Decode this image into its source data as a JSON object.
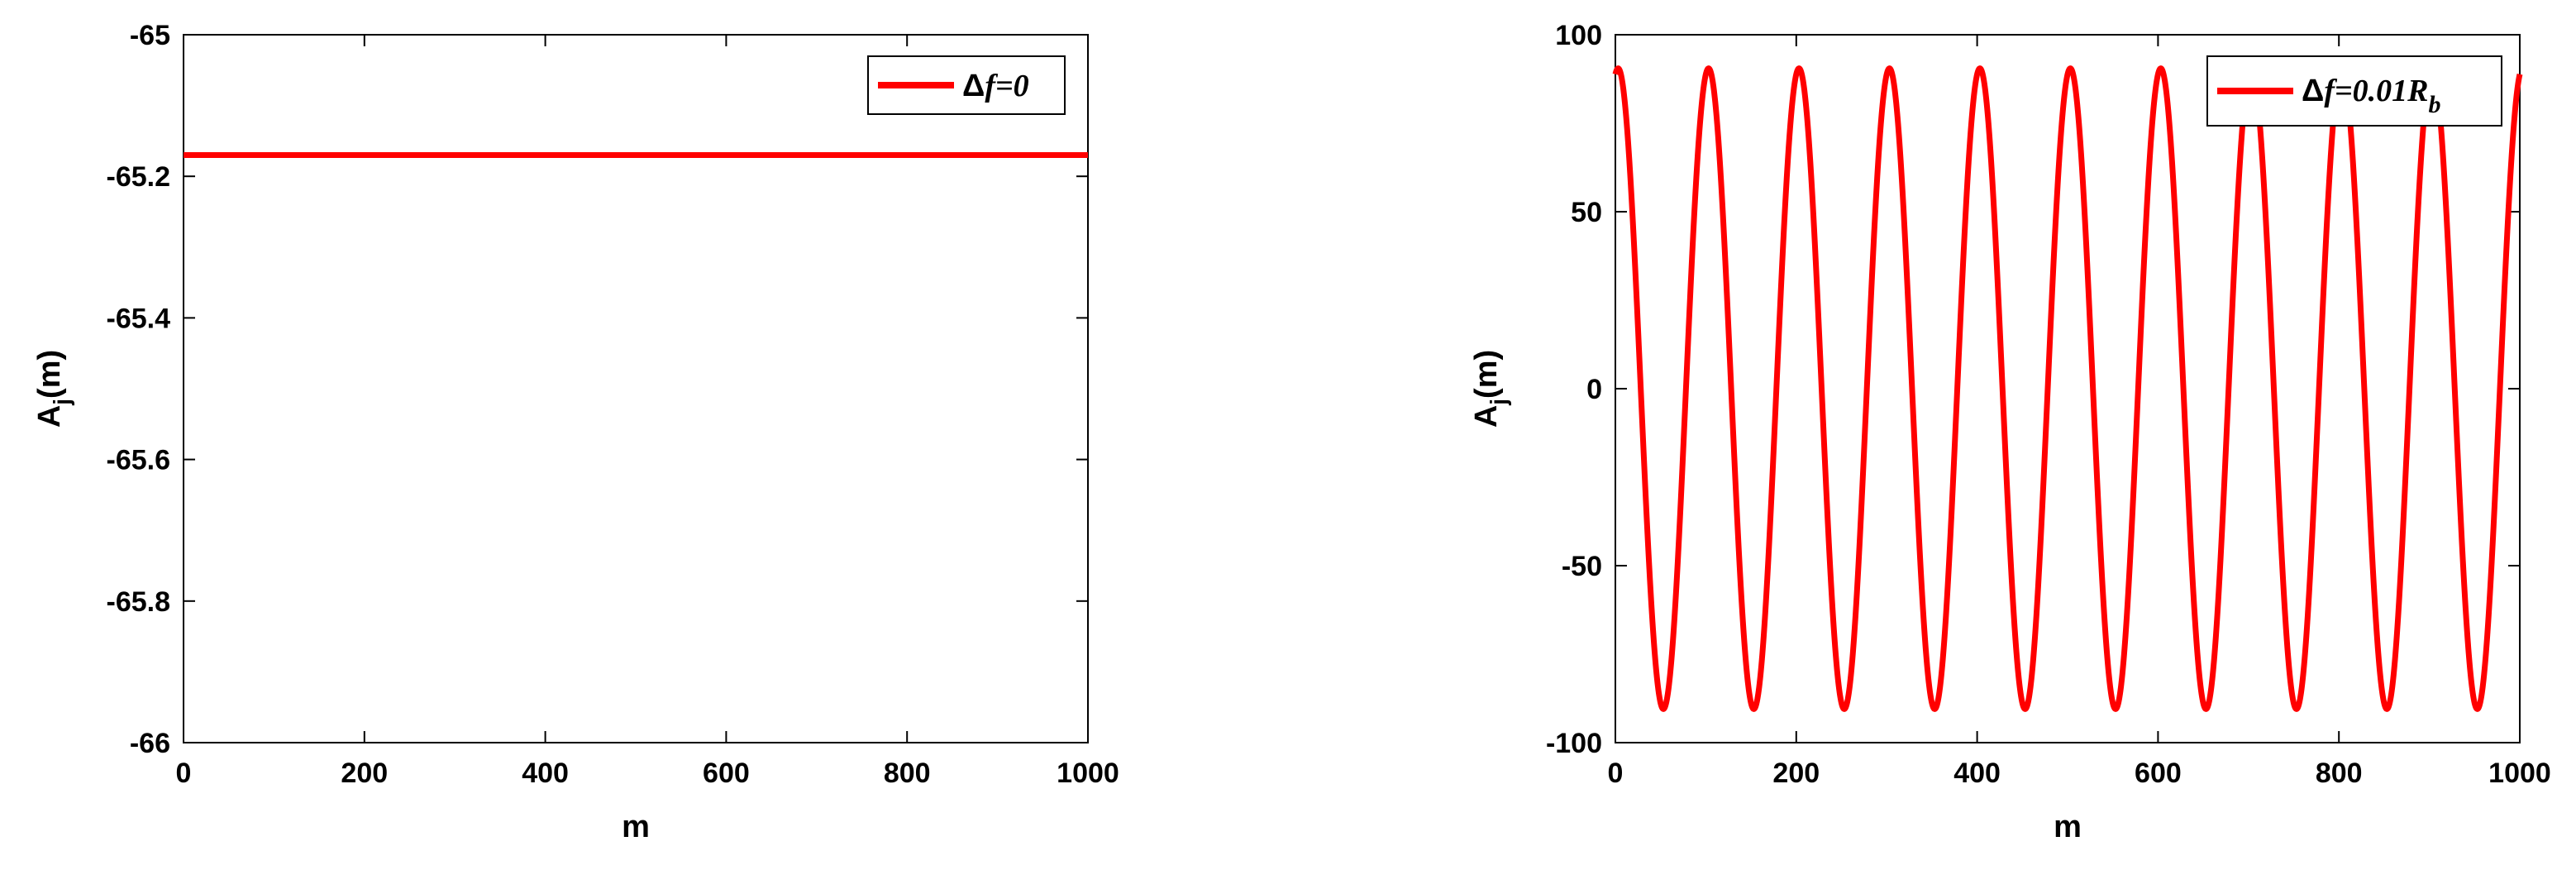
{
  "colors": {
    "series": "#ff0000",
    "axis": "#000000",
    "background": "#ffffff"
  },
  "chart_data": [
    {
      "type": "line",
      "title": "",
      "xlabel": "m",
      "ylabel": {
        "base": "A",
        "sub": "j",
        "rest": "(m)"
      },
      "xlim": [
        0,
        1000
      ],
      "ylim": [
        -66,
        -65
      ],
      "xticks": [
        0,
        200,
        400,
        600,
        800,
        1000
      ],
      "xtick_labels": [
        "0",
        "200",
        "400",
        "600",
        "800",
        "1000"
      ],
      "yticks": [
        -66,
        -65.8,
        -65.6,
        -65.4,
        -65.2,
        -65
      ],
      "ytick_labels": [
        "-66",
        "-65.8",
        "-65.6",
        "-65.4",
        "-65.2",
        "-65"
      ],
      "grid": false,
      "legend_position": "top-right",
      "legend": {
        "symbol": "Δ",
        "main": "f=0",
        "sub": ""
      },
      "series": [
        {
          "name": "Δf=0",
          "function": "constant",
          "value": -65.17,
          "x": [
            0,
            1000
          ],
          "y": [
            -65.17,
            -65.17
          ]
        }
      ]
    },
    {
      "type": "line",
      "title": "",
      "xlabel": "m",
      "ylabel": {
        "base": "A",
        "sub": "j",
        "rest": "(m)"
      },
      "xlim": [
        0,
        1000
      ],
      "ylim": [
        -100,
        100
      ],
      "xticks": [
        0,
        200,
        400,
        600,
        800,
        1000
      ],
      "xtick_labels": [
        "0",
        "200",
        "400",
        "600",
        "800",
        "1000"
      ],
      "yticks": [
        -100,
        -50,
        0,
        50,
        100
      ],
      "ytick_labels": [
        "-100",
        "-50",
        "0",
        "50",
        "100"
      ],
      "grid": false,
      "legend_position": "top-right",
      "legend": {
        "symbol": "Δ",
        "main": "f=0.01R",
        "sub": "b"
      },
      "series": [
        {
          "name": "Δf=0.01Rb",
          "function": "cosine",
          "amplitude": 90.5,
          "period": 100,
          "phase_deg": -11,
          "x": [
            0,
            1000
          ]
        }
      ]
    }
  ]
}
